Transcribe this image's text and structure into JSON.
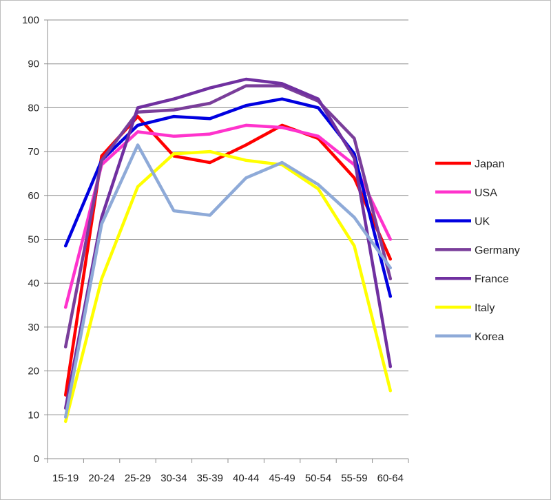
{
  "chart_data": {
    "type": "line",
    "title": "",
    "xlabel": "",
    "ylabel": "",
    "ylim": [
      0,
      100
    ],
    "yticks": [
      0,
      10,
      20,
      30,
      40,
      50,
      60,
      70,
      80,
      90,
      100
    ],
    "grid": "horizontal",
    "legend_position": "right",
    "categories": [
      "15-19",
      "20-24",
      "25-29",
      "30-34",
      "35-39",
      "40-44",
      "45-49",
      "50-54",
      "55-59",
      "60-64"
    ],
    "series": [
      {
        "name": "Japan",
        "color": "#ff0000",
        "values": [
          14.5,
          69,
          78,
          69,
          67.5,
          71.5,
          76,
          73,
          64,
          45.5
        ]
      },
      {
        "name": "USA",
        "color": "#ff33cc",
        "values": [
          34.5,
          67,
          74.5,
          73.5,
          74,
          76,
          75.5,
          73.5,
          67,
          50
        ]
      },
      {
        "name": "UK",
        "color": "#0000e0",
        "values": [
          48.5,
          68,
          76,
          78,
          77.5,
          80.5,
          82,
          80,
          69.5,
          37
        ]
      },
      {
        "name": "Germany",
        "color": "#7a3e9a",
        "values": [
          25.5,
          68,
          79,
          79.5,
          81,
          85,
          85,
          81.5,
          73,
          41
        ]
      },
      {
        "name": "France",
        "color": "#7030a0",
        "values": [
          11.5,
          55,
          80,
          82,
          84.5,
          86.5,
          85.5,
          82,
          68.5,
          21
        ]
      },
      {
        "name": "Italy",
        "color": "#ffff00",
        "values": [
          8.5,
          41,
          62,
          69.5,
          70,
          68,
          67,
          61.5,
          48.5,
          15.5
        ]
      },
      {
        "name": "Korea",
        "color": "#8eaad8",
        "values": [
          9.5,
          53.5,
          71.5,
          56.5,
          55.5,
          64,
          67.5,
          62.5,
          55,
          43.5
        ]
      }
    ]
  }
}
